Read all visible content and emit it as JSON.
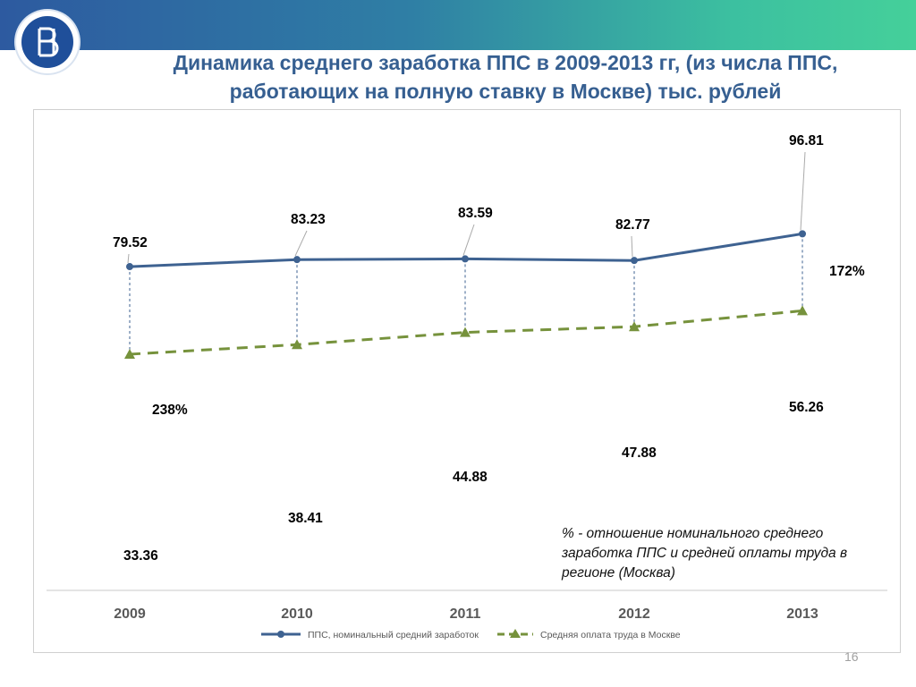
{
  "title_line1": "Динамика среднего заработка ППС  в 2009-2013 гг,  (из числа ППС,",
  "title_line2": "работающих на полную ставку в Москве) тыс. рублей",
  "colors": {
    "series1": "#3e6291",
    "series2": "#76923c",
    "title": "#365f91"
  },
  "chart_data": {
    "type": "line",
    "categories": [
      "2009",
      "2010",
      "2011",
      "2012",
      "2013"
    ],
    "series": [
      {
        "name": "ППС, номинальный средний заработок",
        "values": [
          79.52,
          83.23,
          83.59,
          82.77,
          96.81
        ],
        "labels": [
          "79.52",
          "83.23",
          "83.59",
          "82.77",
          "96.81"
        ]
      },
      {
        "name": "Средняя оплата труда в Москве",
        "values": [
          33.36,
          38.41,
          44.88,
          47.88,
          56.26
        ],
        "labels": [
          "33.36",
          "38.41",
          "44.88",
          "47.88",
          "56.26"
        ]
      }
    ],
    "annotations": [
      "238%",
      "172%"
    ],
    "legend_position": "bottom"
  },
  "note": "% - отношение номинального среднего заработка ППС и средней оплаты труда в регионе (Москва)",
  "page_number": "16"
}
